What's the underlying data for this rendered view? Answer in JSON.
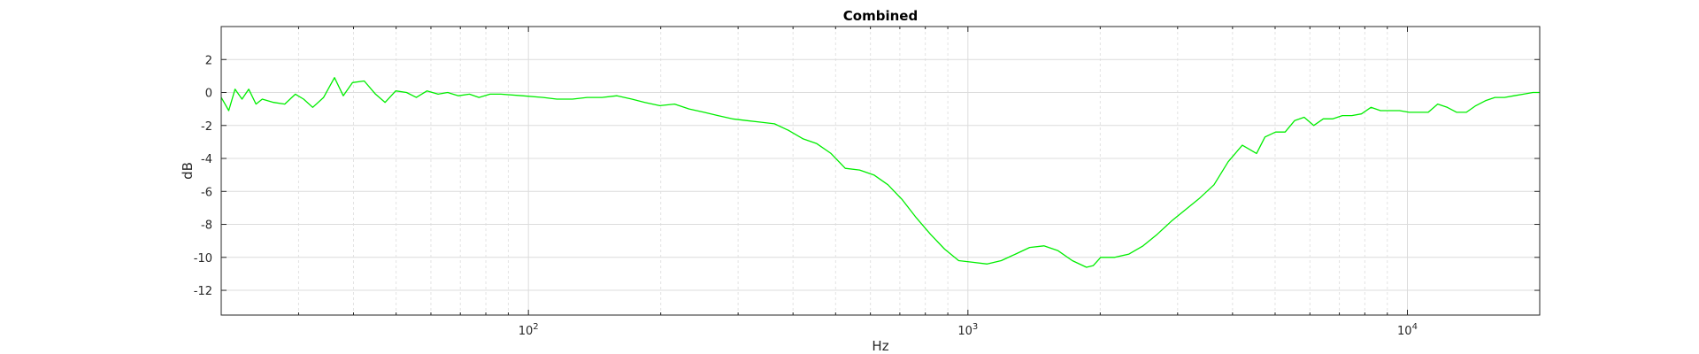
{
  "chart_data": {
    "type": "line",
    "title": "Combined",
    "xlabel": "Hz",
    "ylabel": "dB",
    "x_scale": "log",
    "xlim": [
      20,
      20000
    ],
    "ylim": [
      -13.5,
      4
    ],
    "x_major_ticks": [
      {
        "value": 100,
        "base": "10",
        "exp": "2"
      },
      {
        "value": 1000,
        "base": "10",
        "exp": "3"
      },
      {
        "value": 10000,
        "base": "10",
        "exp": "4"
      }
    ],
    "y_ticks": [
      2,
      0,
      -2,
      -4,
      -6,
      -8,
      -10,
      -12
    ],
    "y_tick_labels": [
      "2",
      "0",
      "-2",
      "-4",
      "-6",
      "-8",
      "-10",
      "-12"
    ],
    "grid": true,
    "line_color": "#00ee00",
    "series": [
      {
        "x": [
          20,
          20.8,
          21.5,
          22.3,
          23.1,
          24,
          24.8,
          26.3,
          27.9,
          29.5,
          30.8,
          32.3,
          34.2,
          36.2,
          37.9,
          39.8,
          42.3,
          44.9,
          47.2,
          49.9,
          52.8,
          55.6,
          58.8,
          62.3,
          65.5,
          69.3,
          73.4,
          77.2,
          81.8,
          86.6,
          96.8,
          108,
          116,
          126,
          136,
          147,
          159,
          172,
          184,
          199,
          215,
          232,
          251,
          270,
          291,
          313,
          337,
          363,
          391,
          421,
          453,
          488,
          526,
          567,
          611,
          658,
          709,
          763,
          822,
          885,
          953,
          1027,
          1106,
          1191,
          1283,
          1382,
          1489,
          1604,
          1728,
          1861,
          1929,
          2005,
          2158,
          2325,
          2504,
          2697,
          2905,
          3129,
          3370,
          3630,
          3910,
          4211,
          4536,
          4740,
          5012,
          5270,
          5540,
          5823,
          6122,
          6436,
          6766,
          7112,
          7476,
          7859,
          8262,
          8685,
          9130,
          9598,
          10090,
          10606,
          11150,
          11720,
          12320,
          12950,
          13620,
          14310,
          15050,
          15820,
          16630,
          17480,
          18370,
          19310,
          20000
        ],
        "y": [
          -0.3,
          -1.1,
          0.2,
          -0.4,
          0.2,
          -0.7,
          -0.4,
          -0.6,
          -0.7,
          -0.1,
          -0.4,
          -0.9,
          -0.3,
          0.9,
          -0.2,
          0.6,
          0.7,
          -0.1,
          -0.6,
          0.1,
          0.0,
          -0.3,
          0.1,
          -0.1,
          0.0,
          -0.2,
          -0.1,
          -0.3,
          -0.1,
          -0.1,
          -0.2,
          -0.3,
          -0.4,
          -0.4,
          -0.3,
          -0.3,
          -0.2,
          -0.4,
          -0.6,
          -0.8,
          -0.7,
          -1.0,
          -1.2,
          -1.4,
          -1.6,
          -1.7,
          -1.8,
          -1.9,
          -2.3,
          -2.8,
          -3.1,
          -3.7,
          -4.6,
          -4.7,
          -5.0,
          -5.6,
          -6.5,
          -7.6,
          -8.6,
          -9.5,
          -10.2,
          -10.3,
          -10.4,
          -10.2,
          -9.8,
          -9.4,
          -9.3,
          -9.6,
          -10.2,
          -10.6,
          -10.5,
          -10.0,
          -10.0,
          -9.8,
          -9.3,
          -8.6,
          -7.8,
          -7.1,
          -6.4,
          -5.6,
          -4.2,
          -3.2,
          -3.7,
          -2.7,
          -2.4,
          -2.4,
          -1.7,
          -1.5,
          -2.0,
          -1.6,
          -1.6,
          -1.4,
          -1.4,
          -1.3,
          -0.9,
          -1.1,
          -1.1,
          -1.1,
          -1.2,
          -1.2,
          -1.2,
          -0.7,
          -0.9,
          -1.2,
          -1.2,
          -0.8,
          -0.5,
          -0.3,
          -0.3,
          -0.2,
          -0.1,
          0.0,
          0.0
        ]
      }
    ]
  }
}
